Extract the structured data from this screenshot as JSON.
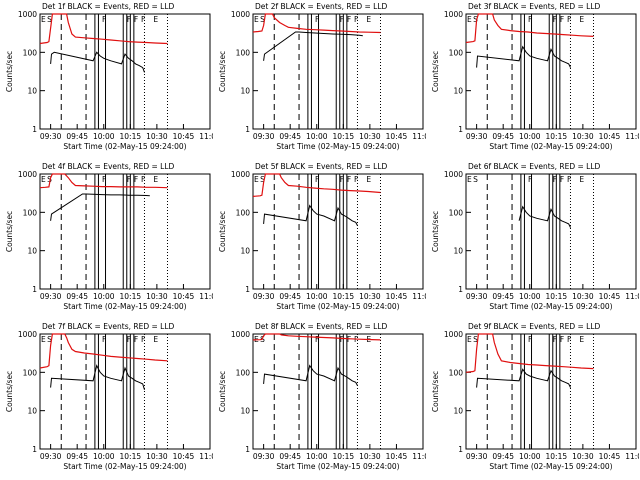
{
  "chart_data": {
    "type": "line",
    "layout": "3x3 grid",
    "y_scale": "log",
    "ylim": [
      1,
      1000
    ],
    "yticks": [
      "1",
      "10",
      "100",
      "1000"
    ],
    "xlim_minutes": [
      "09:24",
      "11:00"
    ],
    "xticks": [
      "09:30",
      "09:45",
      "10:00",
      "10:15",
      "10:30",
      "10:45",
      "11:00"
    ],
    "ylabel": "Counts/sec",
    "xlabel": "Start Time (02-May-15 09:24:00)",
    "series_legend": "BLACK = Events, RED = LLD",
    "marker_labels": [
      "E",
      "S",
      "F",
      "F",
      "F",
      "F",
      "E"
    ],
    "colors": {
      "events": "#000000",
      "lld": "#e01010"
    },
    "panels": [
      {
        "title": "Det 1f BLACK = Events, RED = LLD",
        "red": [
          [
            0,
            170
          ],
          [
            2,
            175
          ],
          [
            4,
            180
          ],
          [
            5,
            190
          ],
          [
            7,
            1000
          ],
          [
            14,
            1000
          ],
          [
            15,
            1000
          ],
          [
            16,
            600
          ],
          [
            18,
            300
          ],
          [
            20,
            250
          ],
          [
            25,
            240
          ],
          [
            30,
            230
          ],
          [
            35,
            220
          ],
          [
            40,
            210
          ],
          [
            45,
            200
          ],
          [
            50,
            190
          ],
          [
            55,
            185
          ],
          [
            60,
            180
          ],
          [
            65,
            175
          ],
          [
            72,
            170
          ]
        ],
        "black": [
          [
            6,
            50
          ],
          [
            6.5,
            90
          ],
          [
            8,
            100
          ],
          [
            30,
            60
          ],
          [
            32,
            100
          ],
          [
            34,
            80
          ],
          [
            36,
            70
          ],
          [
            40,
            60
          ],
          [
            46,
            50
          ],
          [
            48,
            90
          ],
          [
            50,
            70
          ],
          [
            52,
            60
          ],
          [
            54,
            50
          ],
          [
            56,
            45
          ],
          [
            58,
            40
          ],
          [
            59,
            30
          ]
        ]
      },
      {
        "title": "Det 2f BLACK = Events, RED = LLD",
        "red": [
          [
            0,
            340
          ],
          [
            3,
            350
          ],
          [
            5,
            360
          ],
          [
            6,
            500
          ],
          [
            7,
            1000
          ],
          [
            11,
            1000
          ],
          [
            12,
            800
          ],
          [
            15,
            600
          ],
          [
            18,
            500
          ],
          [
            20,
            450
          ],
          [
            25,
            420
          ],
          [
            30,
            400
          ],
          [
            35,
            390
          ],
          [
            40,
            380
          ],
          [
            45,
            370
          ],
          [
            50,
            360
          ],
          [
            55,
            350
          ],
          [
            60,
            340
          ],
          [
            65,
            335
          ],
          [
            72,
            330
          ]
        ],
        "black": [
          [
            6,
            60
          ],
          [
            6.5,
            90
          ],
          [
            24,
            340
          ],
          [
            26,
            340
          ],
          [
            30,
            330
          ],
          [
            35,
            320
          ],
          [
            40,
            310
          ],
          [
            45,
            300
          ],
          [
            50,
            295
          ],
          [
            55,
            290
          ],
          [
            60,
            280
          ],
          [
            62,
            270
          ]
        ]
      },
      {
        "title": "Det 3f BLACK = Events, RED = LLD",
        "red": [
          [
            0,
            180
          ],
          [
            4,
            190
          ],
          [
            5,
            200
          ],
          [
            6,
            700
          ],
          [
            7,
            1000
          ],
          [
            15,
            1000
          ],
          [
            16,
            700
          ],
          [
            18,
            500
          ],
          [
            20,
            400
          ],
          [
            25,
            370
          ],
          [
            30,
            350
          ],
          [
            35,
            340
          ],
          [
            40,
            320
          ],
          [
            45,
            310
          ],
          [
            50,
            300
          ],
          [
            55,
            290
          ],
          [
            60,
            280
          ],
          [
            65,
            270
          ],
          [
            72,
            260
          ]
        ],
        "black": [
          [
            6,
            40
          ],
          [
            6.5,
            80
          ],
          [
            30,
            60
          ],
          [
            32,
            140
          ],
          [
            34,
            100
          ],
          [
            36,
            80
          ],
          [
            40,
            70
          ],
          [
            46,
            60
          ],
          [
            48,
            120
          ],
          [
            50,
            80
          ],
          [
            52,
            70
          ],
          [
            54,
            60
          ],
          [
            56,
            55
          ],
          [
            58,
            50
          ],
          [
            59,
            40
          ]
        ]
      },
      {
        "title": "Det 4f BLACK = Events, RED = LLD",
        "red": [
          [
            0,
            440
          ],
          [
            3,
            450
          ],
          [
            5,
            460
          ],
          [
            6,
            800
          ],
          [
            7,
            1000
          ],
          [
            14,
            1000
          ],
          [
            16,
            800
          ],
          [
            18,
            600
          ],
          [
            20,
            500
          ],
          [
            25,
            490
          ],
          [
            30,
            480
          ],
          [
            35,
            470
          ],
          [
            40,
            470
          ],
          [
            45,
            460
          ],
          [
            50,
            460
          ],
          [
            55,
            460
          ],
          [
            60,
            450
          ],
          [
            65,
            450
          ],
          [
            72,
            440
          ]
        ],
        "black": [
          [
            6,
            60
          ],
          [
            6.5,
            90
          ],
          [
            24,
            300
          ],
          [
            26,
            300
          ],
          [
            30,
            295
          ],
          [
            35,
            290
          ],
          [
            40,
            285
          ],
          [
            45,
            285
          ],
          [
            50,
            280
          ],
          [
            55,
            280
          ],
          [
            60,
            275
          ],
          [
            62,
            270
          ]
        ]
      },
      {
        "title": "Det 5f BLACK = Events, RED = LLD",
        "red": [
          [
            0,
            260
          ],
          [
            4,
            270
          ],
          [
            5,
            280
          ],
          [
            6,
            600
          ],
          [
            7,
            1000
          ],
          [
            15,
            1000
          ],
          [
            16,
            800
          ],
          [
            18,
            600
          ],
          [
            20,
            500
          ],
          [
            25,
            480
          ],
          [
            30,
            450
          ],
          [
            35,
            430
          ],
          [
            40,
            410
          ],
          [
            45,
            400
          ],
          [
            50,
            380
          ],
          [
            55,
            370
          ],
          [
            60,
            360
          ],
          [
            65,
            350
          ],
          [
            72,
            330
          ]
        ],
        "black": [
          [
            6,
            50
          ],
          [
            6.5,
            90
          ],
          [
            30,
            60
          ],
          [
            32,
            150
          ],
          [
            34,
            110
          ],
          [
            36,
            90
          ],
          [
            40,
            80
          ],
          [
            46,
            60
          ],
          [
            48,
            130
          ],
          [
            50,
            90
          ],
          [
            52,
            80
          ],
          [
            54,
            70
          ],
          [
            56,
            60
          ],
          [
            58,
            55
          ],
          [
            59,
            45
          ]
        ]
      },
      {
        "title": "Det 6f BLACK = Events, RED = LLD",
        "red": [],
        "black": [
          [
            30,
            60
          ],
          [
            32,
            140
          ],
          [
            34,
            100
          ],
          [
            36,
            80
          ],
          [
            40,
            70
          ],
          [
            46,
            60
          ],
          [
            48,
            120
          ],
          [
            50,
            80
          ],
          [
            52,
            70
          ],
          [
            54,
            60
          ],
          [
            56,
            55
          ],
          [
            58,
            50
          ],
          [
            59,
            40
          ]
        ]
      },
      {
        "title": "Det 7f BLACK = Events, RED = LLD",
        "red": [
          [
            0,
            130
          ],
          [
            4,
            140
          ],
          [
            5,
            150
          ],
          [
            6,
            500
          ],
          [
            7,
            1000
          ],
          [
            14,
            1000
          ],
          [
            15,
            800
          ],
          [
            16,
            600
          ],
          [
            18,
            400
          ],
          [
            20,
            350
          ],
          [
            25,
            320
          ],
          [
            30,
            300
          ],
          [
            35,
            280
          ],
          [
            40,
            260
          ],
          [
            45,
            250
          ],
          [
            50,
            240
          ],
          [
            55,
            230
          ],
          [
            60,
            220
          ],
          [
            65,
            210
          ],
          [
            72,
            200
          ]
        ],
        "black": [
          [
            6,
            40
          ],
          [
            6.5,
            70
          ],
          [
            30,
            60
          ],
          [
            32,
            150
          ],
          [
            34,
            100
          ],
          [
            36,
            80
          ],
          [
            40,
            70
          ],
          [
            46,
            60
          ],
          [
            48,
            130
          ],
          [
            50,
            80
          ],
          [
            52,
            70
          ],
          [
            54,
            60
          ],
          [
            56,
            55
          ],
          [
            58,
            50
          ],
          [
            59,
            35
          ]
        ]
      },
      {
        "title": "Det 8f BLACK = Events, RED = LLD",
        "red": [
          [
            0,
            700
          ],
          [
            4,
            710
          ],
          [
            5,
            720
          ],
          [
            6,
            900
          ],
          [
            7,
            1000
          ],
          [
            15,
            1000
          ],
          [
            16,
            950
          ],
          [
            20,
            900
          ],
          [
            25,
            870
          ],
          [
            30,
            850
          ],
          [
            35,
            830
          ],
          [
            40,
            810
          ],
          [
            45,
            790
          ],
          [
            50,
            770
          ],
          [
            55,
            750
          ],
          [
            60,
            730
          ],
          [
            65,
            720
          ],
          [
            72,
            700
          ]
        ],
        "black": [
          [
            6,
            50
          ],
          [
            6.5,
            90
          ],
          [
            30,
            60
          ],
          [
            32,
            150
          ],
          [
            34,
            110
          ],
          [
            36,
            90
          ],
          [
            40,
            80
          ],
          [
            46,
            60
          ],
          [
            48,
            130
          ],
          [
            50,
            90
          ],
          [
            52,
            80
          ],
          [
            54,
            70
          ],
          [
            56,
            60
          ],
          [
            58,
            55
          ],
          [
            59,
            45
          ]
        ]
      },
      {
        "title": "Det 9f BLACK = Events, RED = LLD",
        "red": [
          [
            0,
            100
          ],
          [
            4,
            105
          ],
          [
            5,
            110
          ],
          [
            6,
            400
          ],
          [
            7,
            1000
          ],
          [
            15,
            1000
          ],
          [
            16,
            600
          ],
          [
            18,
            300
          ],
          [
            20,
            200
          ],
          [
            25,
            180
          ],
          [
            30,
            170
          ],
          [
            35,
            160
          ],
          [
            40,
            155
          ],
          [
            45,
            150
          ],
          [
            50,
            145
          ],
          [
            55,
            140
          ],
          [
            60,
            135
          ],
          [
            65,
            130
          ],
          [
            72,
            125
          ]
        ],
        "black": [
          [
            6,
            40
          ],
          [
            6.5,
            70
          ],
          [
            30,
            60
          ],
          [
            32,
            120
          ],
          [
            34,
            90
          ],
          [
            36,
            80
          ],
          [
            40,
            70
          ],
          [
            46,
            60
          ],
          [
            48,
            110
          ],
          [
            50,
            80
          ],
          [
            52,
            70
          ],
          [
            54,
            60
          ],
          [
            56,
            55
          ],
          [
            58,
            50
          ],
          [
            59,
            40
          ]
        ]
      }
    ]
  }
}
